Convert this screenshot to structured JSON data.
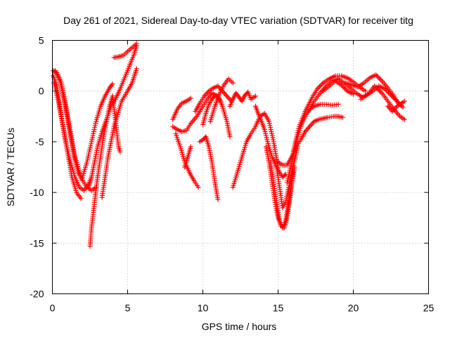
{
  "chart_data": {
    "type": "scatter",
    "title": "Day 261 of 2021, Sidereal Day-to-day VTEC variation (SDTVAR) for receiver titg",
    "xlabel": "GPS time / hours",
    "ylabel": "SDTVAR / TECUs",
    "xlim": [
      0,
      25
    ],
    "ylim": [
      -20,
      5
    ],
    "xticks": [
      0,
      5,
      10,
      15,
      20,
      25
    ],
    "xtick_labels": [
      "0",
      "5",
      "10",
      "15",
      "20",
      "25"
    ],
    "yticks": [
      -20,
      -15,
      -10,
      -5,
      0,
      5
    ],
    "ytick_labels": [
      "-20",
      "-15",
      "-10",
      "-5",
      "0",
      "5"
    ],
    "grid": true,
    "marker": "+",
    "color": "#ff0000",
    "series": [
      {
        "name": "s1",
        "x": [
          0.05,
          0.3,
          0.6,
          0.9,
          1.2,
          1.5,
          1.8,
          2.1,
          2.4,
          2.6
        ],
        "y": [
          1.5,
          0.5,
          -2.5,
          -5.0,
          -7.0,
          -8.5,
          -9.5,
          -9.8,
          -9.2,
          -8.5
        ]
      },
      {
        "name": "s2",
        "x": [
          0.1,
          0.4,
          0.7,
          1.0,
          1.3,
          1.6,
          1.9
        ],
        "y": [
          0.8,
          -1.0,
          -3.5,
          -6.0,
          -8.5,
          -10.0,
          -10.6
        ]
      },
      {
        "name": "s3",
        "x": [
          0.05,
          0.3,
          0.6,
          0.9,
          1.2,
          1.5,
          1.8,
          2.0
        ],
        "y": [
          2.0,
          1.8,
          0.8,
          -1.5,
          -4.0,
          -6.5,
          -8.0,
          -8.8
        ]
      },
      {
        "name": "s4",
        "x": [
          0.2,
          0.5,
          0.8,
          1.1,
          1.4,
          1.7,
          2.0,
          2.3,
          2.6,
          2.9
        ],
        "y": [
          2.0,
          1.0,
          -1.0,
          -3.5,
          -6.0,
          -8.0,
          -8.8,
          -9.5,
          -9.8,
          -9.5
        ]
      },
      {
        "name": "s5",
        "x": [
          2.0,
          2.3,
          2.6,
          2.9,
          3.2,
          3.5,
          3.8,
          4.0
        ],
        "y": [
          -8.5,
          -7.0,
          -5.0,
          -3.0,
          -1.5,
          -0.5,
          0.3,
          0.7
        ]
      },
      {
        "name": "s6",
        "x": [
          2.4,
          2.6,
          2.8,
          3.0,
          3.3,
          3.6,
          3.9,
          4.2,
          4.5,
          4.8,
          5.1,
          5.4,
          5.6
        ],
        "y": [
          -9.5,
          -8.5,
          -7.0,
          -5.5,
          -4.0,
          -2.8,
          -1.5,
          -0.8,
          0.2,
          1.3,
          2.4,
          3.5,
          4.5
        ]
      },
      {
        "name": "s7",
        "x": [
          2.5,
          2.6,
          2.8,
          3.0,
          3.2,
          3.4,
          3.6,
          3.8,
          4.0
        ],
        "y": [
          -15.3,
          -13.5,
          -11.0,
          -8.5,
          -6.5,
          -4.5,
          -3.0,
          -1.5,
          -0.5
        ]
      },
      {
        "name": "s8",
        "x": [
          3.3,
          3.5,
          3.7,
          3.9,
          4.1,
          4.3,
          4.6,
          5.0,
          5.3,
          5.6
        ],
        "y": [
          -10.5,
          -8.5,
          -6.5,
          -5.0,
          -3.5,
          -2.5,
          -1.0,
          0.0,
          0.8,
          2.2
        ]
      },
      {
        "name": "s9",
        "x": [
          4.0,
          4.2,
          4.4,
          4.5
        ],
        "y": [
          -0.5,
          -3.0,
          -5.5,
          -6.0
        ]
      },
      {
        "name": "s10",
        "x": [
          4.1,
          4.4,
          4.7,
          5.0,
          5.3,
          5.6
        ],
        "y": [
          3.3,
          3.4,
          3.5,
          3.9,
          4.3,
          4.7
        ]
      },
      {
        "name": "s11",
        "x": [
          8.0,
          8.3,
          8.6,
          8.9,
          9.2
        ],
        "y": [
          -2.8,
          -1.8,
          -1.2,
          -1.0,
          -0.7
        ]
      },
      {
        "name": "s12",
        "x": [
          8.0,
          8.3,
          8.6,
          8.9,
          9.2,
          9.6,
          10.0,
          10.3,
          10.6,
          11.0,
          11.3,
          11.6,
          11.8
        ],
        "y": [
          -3.5,
          -3.8,
          -4.0,
          -3.9,
          -3.2,
          -2.5,
          -1.5,
          -0.8,
          -0.2,
          -0.5,
          -1.5,
          -3.0,
          -4.5
        ]
      },
      {
        "name": "s13",
        "x": [
          8.2,
          8.5,
          8.8,
          9.1,
          9.4,
          9.7
        ],
        "y": [
          -4.2,
          -5.5,
          -7.0,
          -8.0,
          -8.8,
          -9.5
        ]
      },
      {
        "name": "s14",
        "x": [
          8.8,
          9.0,
          9.2
        ],
        "y": [
          -7.5,
          -6.5,
          -5.5
        ]
      },
      {
        "name": "s15",
        "x": [
          9.5,
          9.8,
          10.1,
          10.4,
          10.7,
          11.0,
          11.3,
          11.6,
          11.9
        ],
        "y": [
          -2.0,
          -1.2,
          -0.5,
          0.0,
          0.3,
          0.5,
          0.0,
          -0.5,
          -1.0
        ]
      },
      {
        "name": "s16",
        "x": [
          9.8,
          10.0,
          10.2,
          10.4,
          10.6,
          10.8,
          11.0
        ],
        "y": [
          -5.0,
          -4.8,
          -4.5,
          -5.5,
          -7.0,
          -9.0,
          -10.7
        ]
      },
      {
        "name": "s17",
        "x": [
          10.5,
          10.8,
          11.1,
          11.4,
          11.7,
          12.0
        ],
        "y": [
          -3.0,
          -1.5,
          -0.3,
          0.6,
          1.2,
          0.8
        ]
      },
      {
        "name": "s18",
        "x": [
          10.0,
          10.2,
          10.4,
          10.6,
          10.8,
          11.0,
          11.2
        ],
        "y": [
          -3.3,
          -2.2,
          -1.3,
          -0.8,
          -0.5,
          -0.6,
          -1.0
        ]
      },
      {
        "name": "s19",
        "x": [
          11.8,
          12.0,
          12.2,
          12.4,
          12.6,
          12.8,
          13.0,
          13.2,
          13.5
        ],
        "y": [
          -1.5,
          -0.8,
          -0.2,
          -0.6,
          -1.0,
          -0.4,
          -0.1,
          -0.8,
          -0.5
        ]
      },
      {
        "name": "s20",
        "x": [
          12.0,
          12.3,
          12.6,
          12.9,
          13.2,
          13.5,
          13.8,
          14.1,
          14.4,
          14.7,
          15.0
        ],
        "y": [
          -9.5,
          -8.0,
          -6.5,
          -5.0,
          -4.2,
          -3.5,
          -2.5,
          -2.2,
          -3.0,
          -5.0,
          -7.5
        ]
      },
      {
        "name": "s21",
        "x": [
          13.5,
          13.7,
          13.9,
          14.1,
          14.3,
          14.6,
          14.9,
          15.1,
          15.3,
          15.5
        ],
        "y": [
          -1.5,
          -2.3,
          -3.0,
          -3.8,
          -5.0,
          -6.5,
          -7.5,
          -8.0,
          -8.5,
          -8.2
        ]
      },
      {
        "name": "s22",
        "x": [
          14.2,
          14.4,
          14.6,
          14.8,
          15.0,
          15.2,
          15.4,
          15.6,
          15.8,
          16.0
        ],
        "y": [
          -5.5,
          -7.0,
          -9.0,
          -11.0,
          -12.5,
          -13.3,
          -13.5,
          -12.5,
          -10.5,
          -8.0
        ]
      },
      {
        "name": "s23",
        "x": [
          14.5,
          14.7,
          14.9,
          15.1,
          15.3,
          15.5,
          15.7,
          15.9,
          16.1
        ],
        "y": [
          -7.0,
          -9.0,
          -11.0,
          -12.8,
          -13.5,
          -12.8,
          -11.0,
          -9.0,
          -7.5
        ]
      },
      {
        "name": "s24",
        "x": [
          14.9,
          15.1,
          15.3,
          15.5,
          15.7,
          16.0,
          16.3
        ],
        "y": [
          -7.5,
          -9.5,
          -11.5,
          -11.0,
          -9.5,
          -7.5,
          -5.5
        ]
      },
      {
        "name": "s25",
        "x": [
          15.0,
          15.3,
          15.6,
          15.9,
          16.2,
          16.5,
          16.8,
          17.1,
          17.4,
          17.7,
          18.0,
          18.3,
          18.7,
          19.0,
          19.3
        ],
        "y": [
          -7.0,
          -7.3,
          -7.3,
          -6.5,
          -5.5,
          -4.8,
          -4.0,
          -3.5,
          -3.0,
          -2.8,
          -2.7,
          -2.6,
          -2.5,
          -2.5,
          -2.6
        ]
      },
      {
        "name": "s26",
        "x": [
          15.6,
          15.9,
          16.2,
          16.5,
          16.8,
          17.1,
          17.4,
          17.8,
          18.2,
          18.6,
          19.0
        ],
        "y": [
          -9.0,
          -7.0,
          -5.0,
          -3.5,
          -2.5,
          -1.8,
          -1.5,
          -1.3,
          -1.3,
          -1.4,
          -1.3
        ]
      },
      {
        "name": "s27",
        "x": [
          16.0,
          16.4,
          16.8,
          17.2,
          17.6,
          18.0,
          18.4,
          18.8,
          19.2,
          19.6,
          20.0,
          20.4,
          20.8
        ],
        "y": [
          -6.0,
          -3.5,
          -2.0,
          -0.8,
          0.2,
          0.8,
          1.2,
          1.5,
          1.5,
          1.3,
          0.9,
          0.4,
          0.0
        ]
      },
      {
        "name": "s28",
        "x": [
          17.0,
          17.4,
          17.8,
          18.2,
          18.6,
          19.0,
          19.4,
          19.8,
          20.2,
          20.6,
          21.0,
          21.4
        ],
        "y": [
          -2.0,
          -1.0,
          -0.2,
          0.5,
          1.0,
          1.2,
          0.8,
          0.3,
          -0.2,
          -0.6,
          -0.3,
          0.5
        ]
      },
      {
        "name": "s29",
        "x": [
          18.0,
          18.4,
          18.8,
          19.2,
          19.6,
          20.0
        ],
        "y": [
          0.0,
          0.5,
          1.0,
          0.6,
          0.0,
          -0.3
        ]
      },
      {
        "name": "s30",
        "x": [
          19.5,
          19.9,
          20.3,
          20.7,
          21.1,
          21.5,
          21.9,
          22.3,
          22.7,
          23.0
        ],
        "y": [
          0.8,
          0.6,
          0.4,
          0.8,
          1.3,
          1.6,
          1.0,
          0.3,
          -0.5,
          -1.2
        ]
      },
      {
        "name": "s31",
        "x": [
          20.5,
          20.9,
          21.3,
          21.7,
          22.1,
          22.5,
          22.9,
          23.3
        ],
        "y": [
          -0.8,
          -0.4,
          0.0,
          0.5,
          0.2,
          -0.4,
          -1.0,
          -1.6
        ]
      },
      {
        "name": "s32",
        "x": [
          21.5,
          21.9,
          22.3,
          22.7,
          23.1,
          23.4
        ],
        "y": [
          0.4,
          -0.2,
          -1.0,
          -1.8,
          -2.5,
          -2.8
        ]
      },
      {
        "name": "s33",
        "x": [
          22.3,
          22.6,
          22.9,
          23.2,
          23.4
        ],
        "y": [
          -1.5,
          -2.0,
          -1.5,
          -1.2,
          -1.0
        ]
      }
    ]
  }
}
